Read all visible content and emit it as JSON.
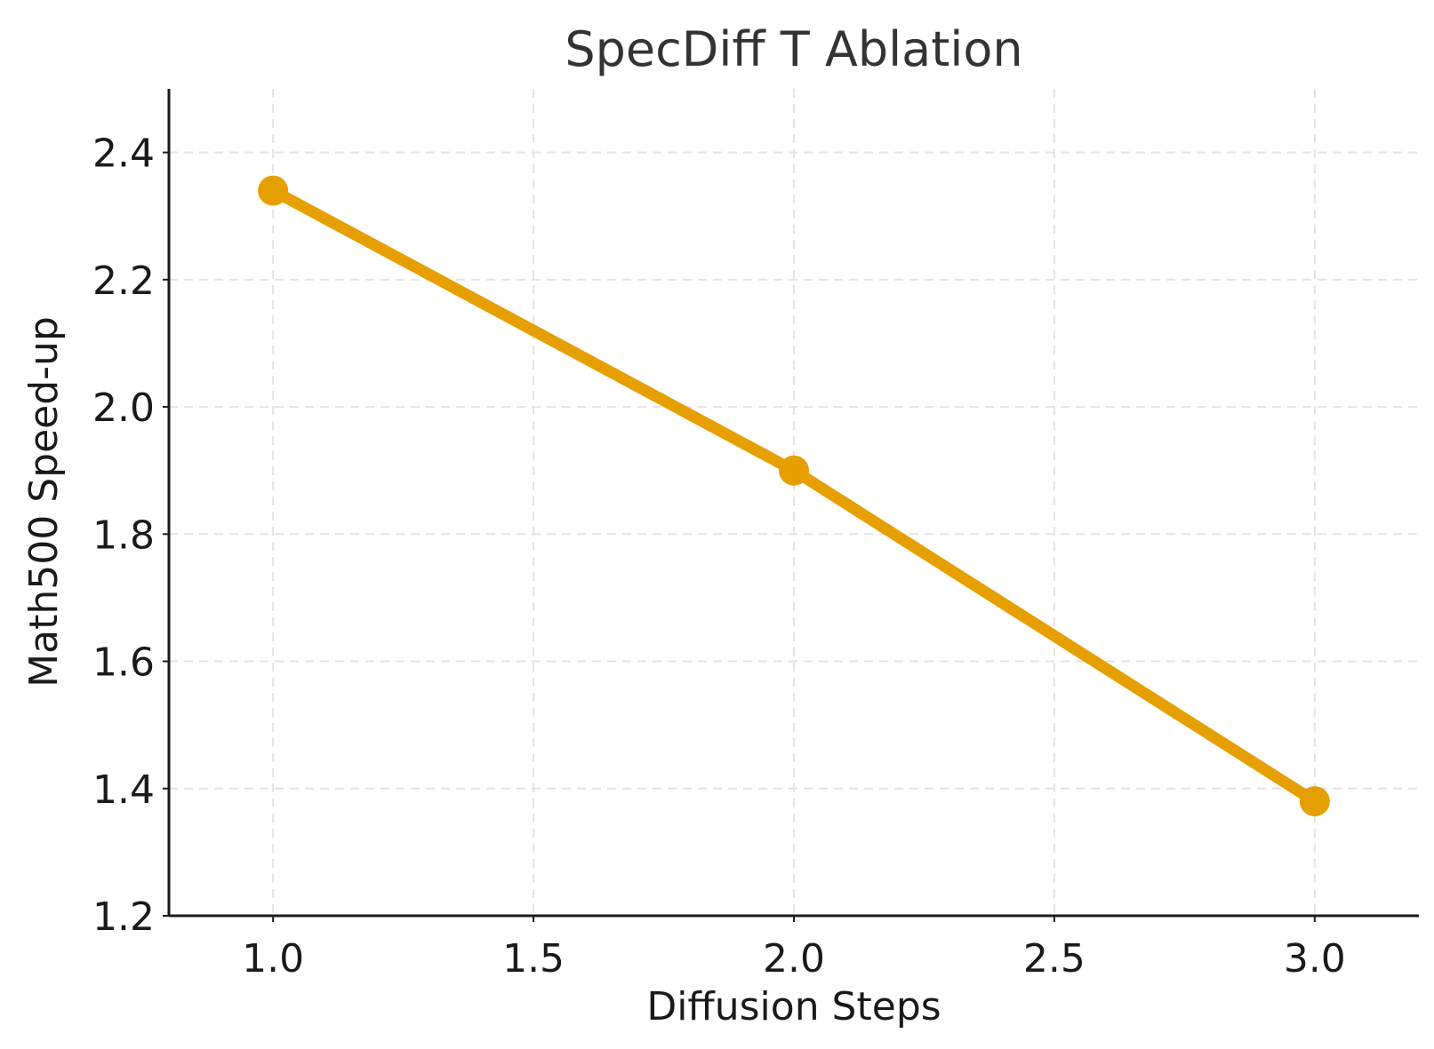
{
  "chart_data": {
    "type": "line",
    "title": "SpecDiff T Ablation",
    "xlabel": "Diffusion Steps",
    "ylabel": "Math500 Speed-up",
    "x": [
      1,
      2,
      3
    ],
    "series": [
      {
        "values": [
          2.34,
          1.9,
          1.38
        ],
        "color": "#e69f00"
      }
    ],
    "xlim": [
      0.8,
      3.2
    ],
    "ylim": [
      1.2,
      2.5
    ],
    "xticks": [
      "1.0",
      "1.5",
      "2.0",
      "2.5",
      "3.0"
    ],
    "yticks": [
      "1.2",
      "1.4",
      "1.6",
      "1.8",
      "2.0",
      "2.2",
      "2.4"
    ],
    "grid": true,
    "legend": "none"
  }
}
